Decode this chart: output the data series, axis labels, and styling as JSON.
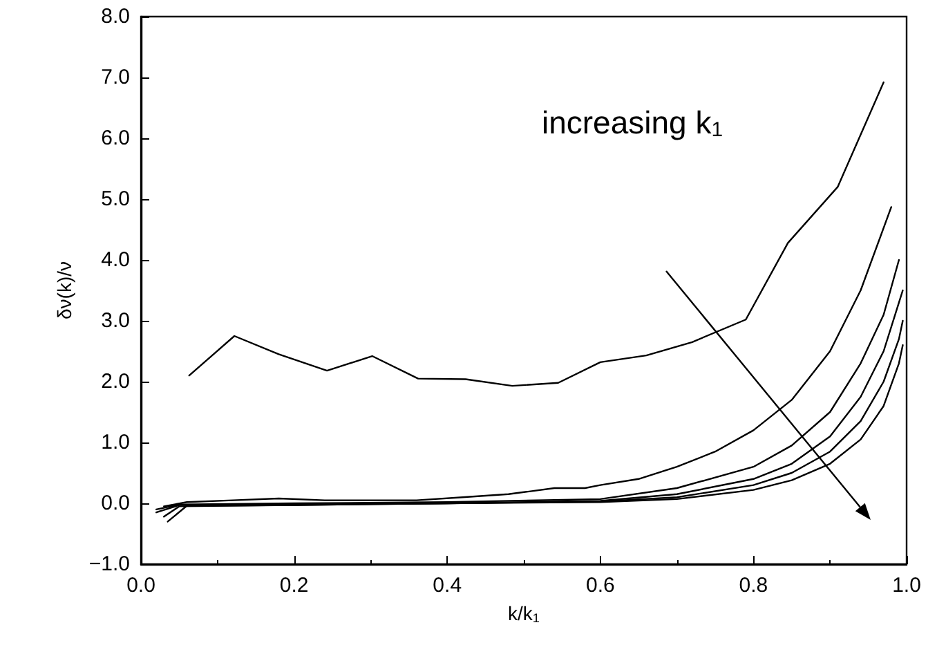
{
  "chart_data": {
    "type": "line",
    "xlabel": "k/k$_{1}$",
    "ylabel": "δν(k)/ν",
    "xlim": [
      0,
      1
    ],
    "ylim": [
      -1,
      8
    ],
    "xticks": [
      {
        "value": 0,
        "label": "0.0"
      },
      {
        "value": 0.2,
        "label": "0.2"
      },
      {
        "value": 0.4,
        "label": "0.4"
      },
      {
        "value": 0.6,
        "label": "0.6"
      },
      {
        "value": 0.8,
        "label": "0.8"
      },
      {
        "value": 1,
        "label": "1.0"
      }
    ],
    "yticks": [
      {
        "value": -1,
        "label": "−1.0"
      },
      {
        "value": 0,
        "label": "0.0"
      },
      {
        "value": 1,
        "label": "1.0"
      },
      {
        "value": 2,
        "label": "2.0"
      },
      {
        "value": 3,
        "label": "3.0"
      },
      {
        "value": 4,
        "label": "4.0"
      },
      {
        "value": 5,
        "label": "5.0"
      },
      {
        "value": 6,
        "label": "6.0"
      },
      {
        "value": 7,
        "label": "7.0"
      },
      {
        "value": 8,
        "label": "8.0"
      }
    ],
    "marker": "none",
    "line_style": "solid",
    "annotations": [
      "increasing k$_{1}$"
    ],
    "series": [
      {
        "color": "#000000",
        "x": [
          0.063,
          0.122,
          0.18,
          0.243,
          0.302,
          0.362,
          0.424,
          0.485,
          0.545,
          0.6,
          0.66,
          0.72,
          0.79,
          0.845,
          0.91,
          0.97
        ],
        "values": [
          2.1,
          2.75,
          2.45,
          2.18,
          2.42,
          2.05,
          2.04,
          1.93,
          1.98,
          2.32,
          2.43,
          2.65,
          3.02,
          4.28,
          5.2,
          6.92
        ]
      },
      {
        "color": "#000000",
        "x": [
          0.03,
          0.06,
          0.12,
          0.18,
          0.24,
          0.3,
          0.36,
          0.42,
          0.48,
          0.54,
          0.58,
          0.6,
          0.65,
          0.7,
          0.75,
          0.8,
          0.85,
          0.9,
          0.94,
          0.98
        ],
        "values": [
          -0.05,
          0.02,
          0.05,
          0.08,
          0.05,
          0.05,
          0.05,
          0.1,
          0.15,
          0.25,
          0.25,
          0.3,
          0.4,
          0.6,
          0.85,
          1.2,
          1.7,
          2.5,
          3.5,
          4.87
        ]
      },
      {
        "color": "#000000",
        "x": [
          0.02,
          0.05,
          0.2,
          0.4,
          0.6,
          0.7,
          0.8,
          0.85,
          0.9,
          0.94,
          0.97,
          0.99
        ],
        "values": [
          -0.1,
          -0.02,
          0.0,
          0.02,
          0.07,
          0.25,
          0.6,
          0.95,
          1.5,
          2.3,
          3.1,
          4.0
        ]
      },
      {
        "color": "#000000",
        "x": [
          0.02,
          0.05,
          0.2,
          0.4,
          0.6,
          0.7,
          0.8,
          0.85,
          0.9,
          0.94,
          0.97,
          0.99,
          0.995
        ],
        "values": [
          -0.15,
          -0.03,
          -0.02,
          0.0,
          0.04,
          0.15,
          0.4,
          0.65,
          1.1,
          1.75,
          2.5,
          3.3,
          3.5
        ]
      },
      {
        "color": "#000000",
        "x": [
          0.03,
          0.05,
          0.2,
          0.4,
          0.6,
          0.7,
          0.8,
          0.85,
          0.9,
          0.94,
          0.97,
          0.99,
          0.995
        ],
        "values": [
          -0.22,
          -0.05,
          -0.03,
          0.0,
          0.03,
          0.1,
          0.3,
          0.5,
          0.85,
          1.35,
          2.0,
          2.7,
          3.0
        ]
      },
      {
        "color": "#000000",
        "x": [
          0.035,
          0.06,
          0.2,
          0.4,
          0.6,
          0.7,
          0.8,
          0.85,
          0.9,
          0.94,
          0.97,
          0.99,
          0.995
        ],
        "values": [
          -0.3,
          -0.04,
          -0.03,
          0.0,
          0.02,
          0.07,
          0.22,
          0.38,
          0.65,
          1.05,
          1.6,
          2.3,
          2.6
        ]
      }
    ]
  }
}
